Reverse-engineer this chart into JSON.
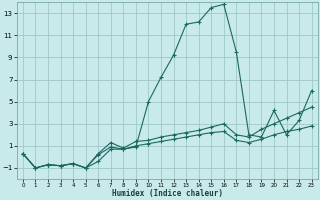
{
  "xlabel": "Humidex (Indice chaleur)",
  "background_color": "#c8eaea",
  "grid_color": "#a0c8c8",
  "line_color": "#1a6860",
  "xlim": [
    -0.5,
    23.5
  ],
  "ylim": [
    -2,
    14
  ],
  "yticks": [
    -1,
    1,
    3,
    5,
    7,
    9,
    11,
    13
  ],
  "xticks": [
    0,
    1,
    2,
    3,
    4,
    5,
    6,
    7,
    8,
    9,
    10,
    11,
    12,
    13,
    14,
    15,
    16,
    17,
    18,
    19,
    20,
    21,
    22,
    23
  ],
  "series": [
    {
      "x": [
        0,
        1,
        2,
        3,
        4,
        5,
        6,
        7,
        8,
        9,
        10,
        11,
        12,
        13,
        14,
        15,
        16,
        17,
        18,
        19,
        20,
        21,
        22,
        23
      ],
      "y": [
        0.3,
        -1.0,
        -0.7,
        -0.8,
        -0.6,
        -1.0,
        -0.4,
        0.7,
        0.7,
        0.9,
        5.0,
        7.2,
        9.2,
        12.0,
        12.2,
        13.5,
        13.8,
        9.5,
        2.0,
        1.8,
        4.2,
        2.0,
        3.3,
        6.0
      ]
    },
    {
      "x": [
        0,
        1,
        2,
        3,
        4,
        5,
        6,
        7,
        8,
        9,
        10,
        11,
        12,
        13,
        14,
        15,
        16,
        17,
        18,
        19,
        20,
        21,
        22,
        23
      ],
      "y": [
        0.3,
        -1.0,
        -0.7,
        -0.8,
        -0.6,
        -1.0,
        0.3,
        1.3,
        0.8,
        1.4,
        1.5,
        1.8,
        2.0,
        2.2,
        2.4,
        2.7,
        3.0,
        2.0,
        1.8,
        2.5,
        3.0,
        3.5,
        4.0,
        4.5
      ]
    },
    {
      "x": [
        0,
        1,
        2,
        3,
        4,
        5,
        6,
        7,
        8,
        9,
        10,
        11,
        12,
        13,
        14,
        15,
        16,
        17,
        18,
        19,
        20,
        21,
        22,
        23
      ],
      "y": [
        0.3,
        -1.0,
        -0.7,
        -0.8,
        -0.6,
        -1.0,
        0.2,
        0.9,
        0.7,
        1.0,
        1.2,
        1.4,
        1.6,
        1.8,
        2.0,
        2.2,
        2.3,
        1.5,
        1.3,
        1.6,
        2.0,
        2.3,
        2.5,
        2.8
      ]
    }
  ]
}
